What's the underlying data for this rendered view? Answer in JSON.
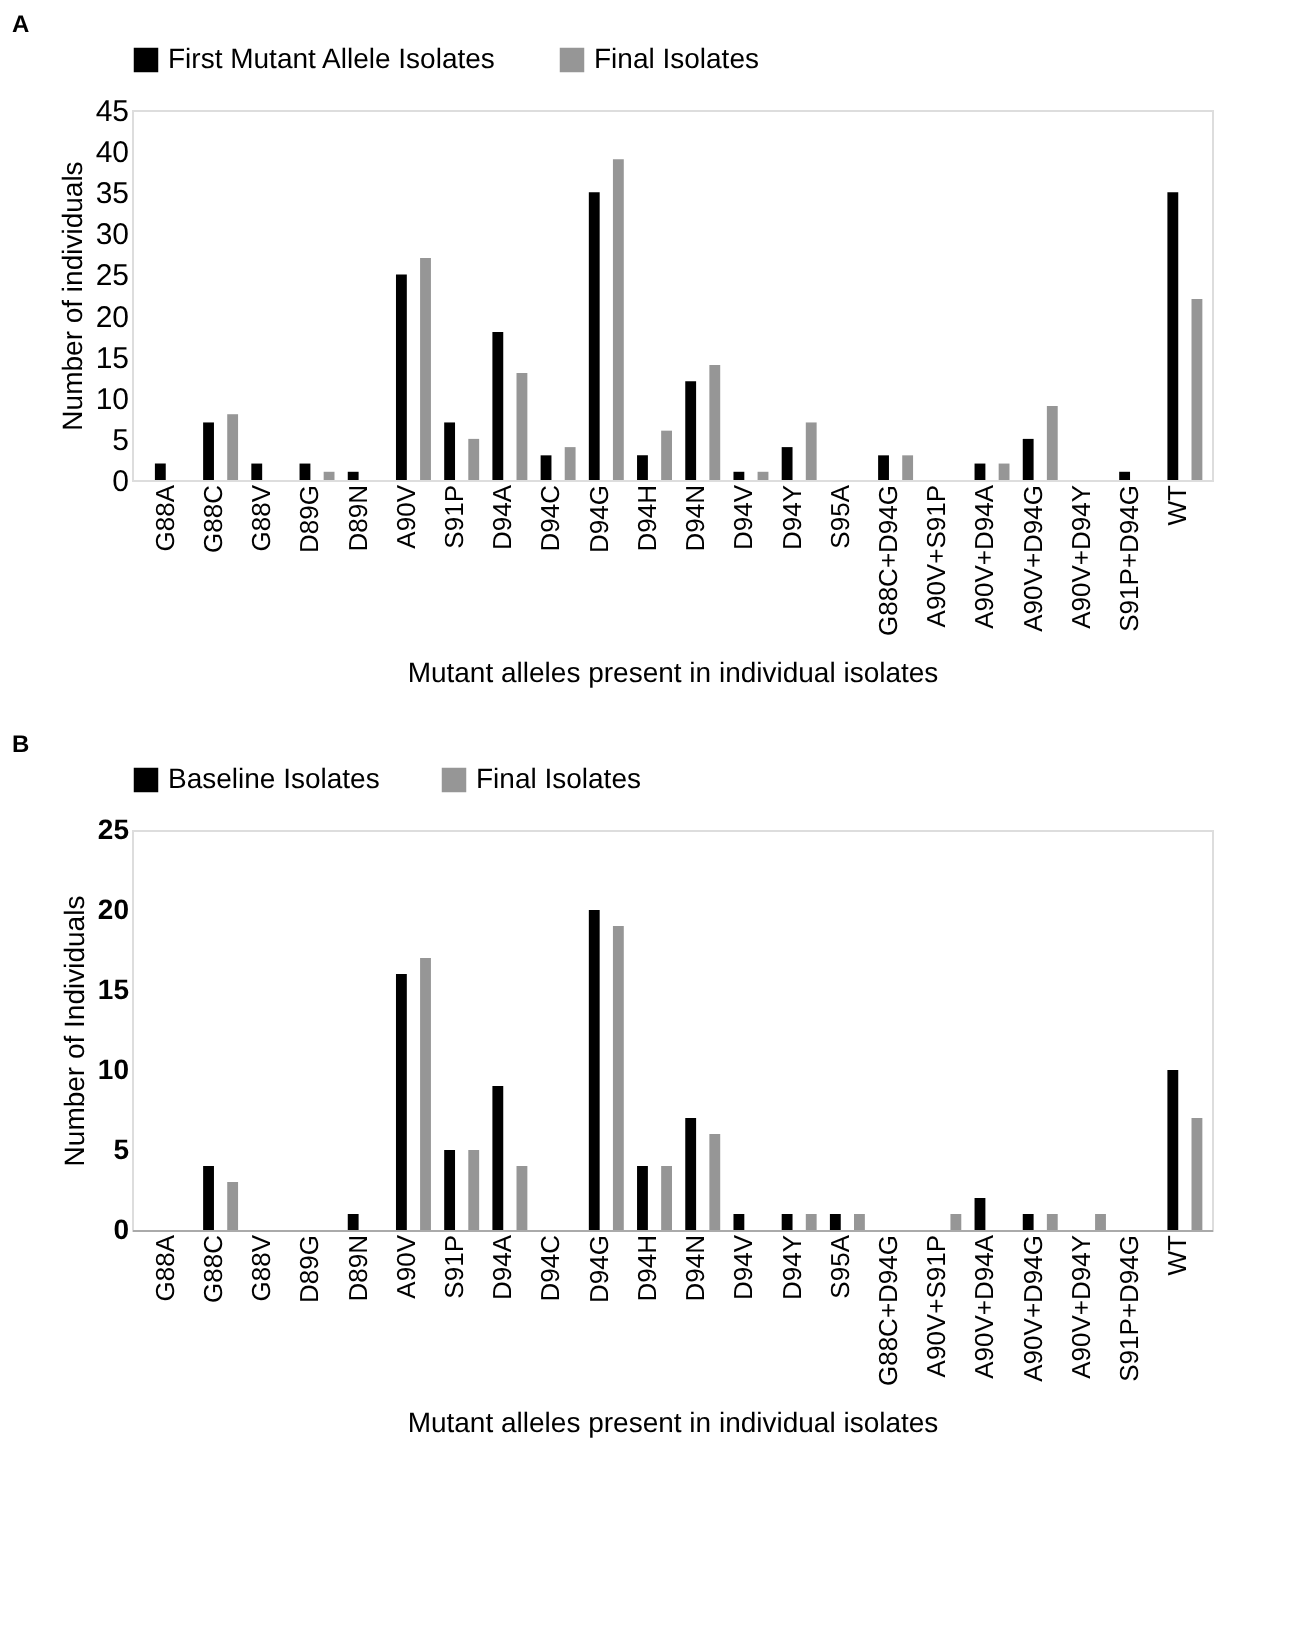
{
  "chart_data": [
    {
      "type": "bar",
      "title": "A",
      "xlabel": "Mutant alleles present in individual isolates",
      "ylabel": "Number of individuals",
      "categories": [
        "G88A",
        "G88C",
        "G88V",
        "D89G",
        "D89N",
        "A90V",
        "S91P",
        "D94A",
        "D94C",
        "D94G",
        "D94H",
        "D94N",
        "D94V",
        "D94Y",
        "S95A",
        "G88C+D94G",
        "A90V+S91P",
        "A90V+D94A",
        "A90V+D94G",
        "A90V+D94Y",
        "S91P+D94G",
        "WT"
      ],
      "series": [
        {
          "name": "First Mutant Allele Isolates",
          "color": "#000000",
          "values": [
            2,
            7,
            2,
            2,
            1,
            25,
            7,
            18,
            3,
            35,
            3,
            12,
            1,
            4,
            0,
            3,
            0,
            2,
            5,
            0,
            1,
            35
          ]
        },
        {
          "name": "Final Isolates",
          "color": "#969696",
          "values": [
            0,
            8,
            0,
            1,
            0,
            27,
            5,
            13,
            4,
            39,
            6,
            14,
            1,
            7,
            0,
            3,
            0,
            2,
            9,
            0,
            0,
            22
          ]
        }
      ],
      "ylim": [
        0,
        45
      ],
      "yticks": [
        0,
        5,
        10,
        15,
        20,
        25,
        30,
        35,
        40,
        45
      ],
      "grid": false,
      "legend": "top"
    },
    {
      "type": "bar",
      "title": "B",
      "xlabel": "Mutant alleles present in individual isolates",
      "ylabel": "Number of Individuals",
      "categories": [
        "G88A",
        "G88C",
        "G88V",
        "D89G",
        "D89N",
        "A90V",
        "S91P",
        "D94A",
        "D94C",
        "D94G",
        "D94H",
        "D94N",
        "D94V",
        "D94Y",
        "S95A",
        "G88C+D94G",
        "A90V+S91P",
        "A90V+D94A",
        "A90V+D94G",
        "A90V+D94Y",
        "S91P+D94G",
        "WT"
      ],
      "series": [
        {
          "name": "Baseline Isolates",
          "color": "#000000",
          "values": [
            0,
            4,
            0,
            0,
            1,
            16,
            5,
            9,
            0,
            20,
            4,
            7,
            1,
            1,
            1,
            0,
            0,
            2,
            1,
            0,
            0,
            10
          ]
        },
        {
          "name": "Final Isolates",
          "color": "#969696",
          "values": [
            0,
            3,
            0,
            0,
            0,
            17,
            5,
            4,
            0,
            19,
            4,
            6,
            0,
            1,
            1,
            0,
            1,
            0,
            1,
            1,
            0,
            7
          ]
        }
      ],
      "ylim": [
        0,
        25
      ],
      "yticks": [
        0,
        5,
        10,
        15,
        20,
        25
      ],
      "grid": false,
      "legend": "top"
    }
  ]
}
